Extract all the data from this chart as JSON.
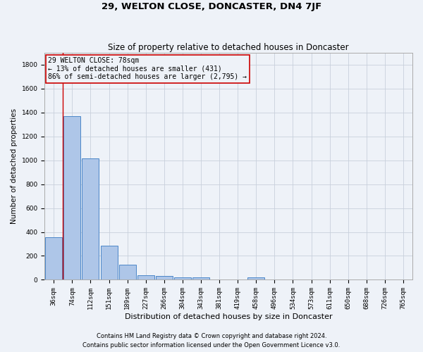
{
  "title": "29, WELTON CLOSE, DONCASTER, DN4 7JF",
  "subtitle": "Size of property relative to detached houses in Doncaster",
  "xlabel": "Distribution of detached houses by size in Doncaster",
  "ylabel": "Number of detached properties",
  "bar_values": [
    355,
    1370,
    1015,
    285,
    125,
    40,
    30,
    22,
    18,
    0,
    0,
    22,
    0,
    0,
    0,
    0,
    0,
    0,
    0,
    0
  ],
  "bin_labels": [
    "36sqm",
    "74sqm",
    "112sqm",
    "151sqm",
    "189sqm",
    "227sqm",
    "266sqm",
    "304sqm",
    "343sqm",
    "381sqm",
    "419sqm",
    "458sqm",
    "496sqm",
    "534sqm",
    "573sqm",
    "611sqm",
    "650sqm",
    "688sqm",
    "726sqm",
    "765sqm"
  ],
  "bar_color": "#aec6e8",
  "bar_edge_color": "#4a86c8",
  "grid_color": "#c8d0dc",
  "bg_color": "#eef2f8",
  "annotation_box_color": "#cc0000",
  "property_line_color": "#cc0000",
  "property_label": "29 WELTON CLOSE: 78sqm",
  "annotation_line1": "← 13% of detached houses are smaller (431)",
  "annotation_line2": "86% of semi-detached houses are larger (2,795) →",
  "property_bin_index": 1,
  "ylim": [
    0,
    1900
  ],
  "yticks": [
    0,
    200,
    400,
    600,
    800,
    1000,
    1200,
    1400,
    1600,
    1800
  ],
  "footnote1": "Contains HM Land Registry data © Crown copyright and database right 2024.",
  "footnote2": "Contains public sector information licensed under the Open Government Licence v3.0.",
  "title_fontsize": 9.5,
  "subtitle_fontsize": 8.5,
  "xlabel_fontsize": 8,
  "ylabel_fontsize": 7.5,
  "tick_fontsize": 6.5,
  "annot_fontsize": 7,
  "footnote_fontsize": 6
}
